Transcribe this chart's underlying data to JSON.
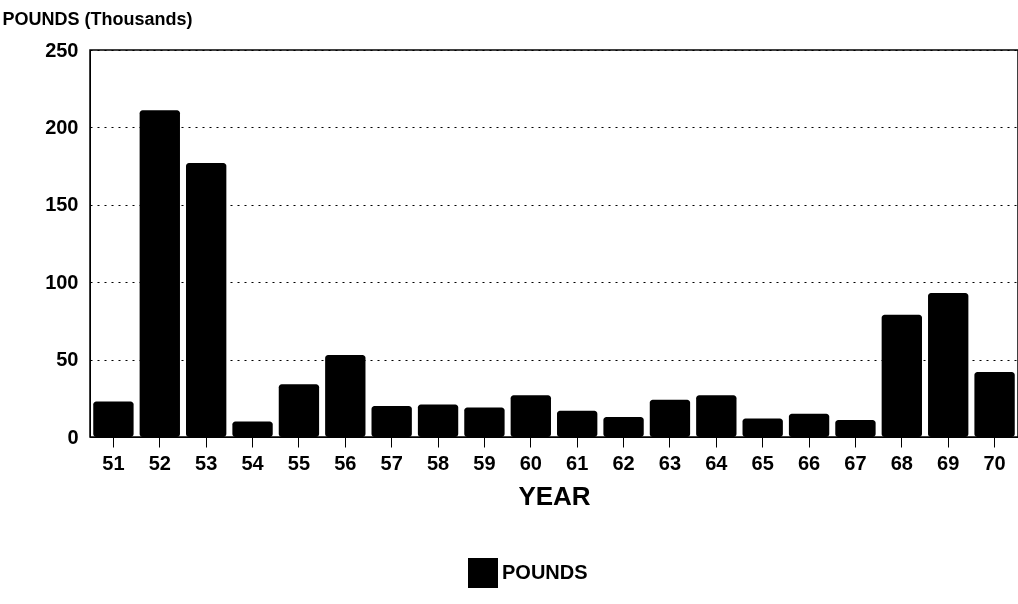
{
  "chart_data": {
    "type": "bar",
    "xlabel": "YEAR",
    "ylabel": "POUNDS (Thousands)",
    "categories": [
      "51",
      "52",
      "53",
      "54",
      "55",
      "56",
      "57",
      "58",
      "59",
      "60",
      "61",
      "62",
      "63",
      "64",
      "65",
      "66",
      "67",
      "68",
      "69",
      "70"
    ],
    "series": [
      {
        "name": "POUNDS",
        "color": "#000000",
        "values": [
          23,
          211,
          177,
          10,
          34,
          53,
          20,
          21,
          19,
          27,
          17,
          13,
          24,
          27,
          12,
          15,
          11,
          79,
          93,
          42
        ]
      }
    ],
    "ylim": [
      0,
      250
    ],
    "yticks": [
      0,
      50,
      100,
      150,
      200,
      250
    ],
    "grid": "y",
    "legend": "bottom"
  }
}
